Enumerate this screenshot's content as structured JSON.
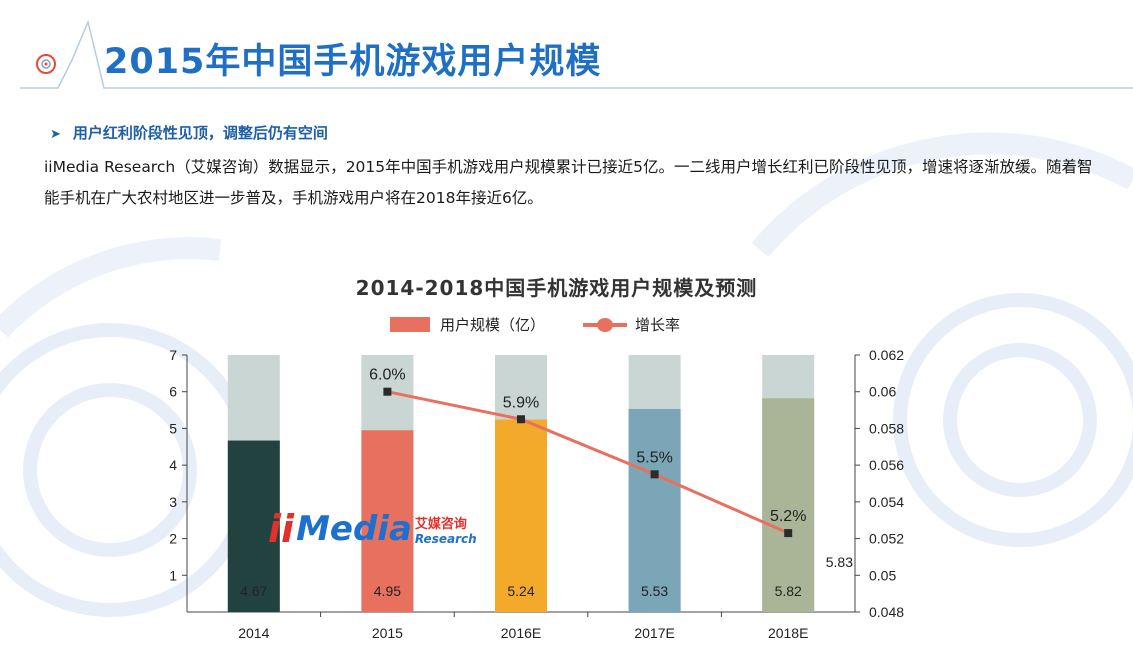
{
  "header": {
    "title": "2015年中国手机游戏用户规模"
  },
  "content": {
    "subheading": "用户红利阶段性见顶，调整后仍有空间",
    "paragraph": "iiMedia Research（艾媒咨询）数据显示，2015年中国手机游戏用户规模累计已接近5亿。一二线用户增长红利已阶段性见顶，增速将逐渐放缓。随着智能手机在广大农村地区进一步普及，手机游戏用户将在2018年接近6亿。"
  },
  "logo": {
    "ii": "ii",
    "media": "Media",
    "cn": "艾媒咨询",
    "en": "Research"
  },
  "colors": {
    "title": "#1f6fc5",
    "line": "#e8705e",
    "bar_background": "#c9d6d3"
  },
  "chart_data": {
    "type": "bar",
    "title": "2014-2018中国手机游戏用户规模及预测",
    "legend": [
      "用户规模（亿）",
      "增长率"
    ],
    "legend_position": "top",
    "categories": [
      "2014",
      "2015",
      "2016E",
      "2017E",
      "2018E"
    ],
    "series": [
      {
        "name": "用户规模（亿）",
        "type": "bar",
        "axis": "left",
        "values": [
          4.67,
          4.95,
          5.24,
          5.53,
          5.82
        ],
        "labels": [
          "4.67",
          "4.95",
          "5.24",
          "5.53",
          "5.82"
        ],
        "colors": [
          "#22423f",
          "#e8705e",
          "#f3aa2a",
          "#7aa6b8",
          "#a9b596"
        ]
      },
      {
        "name": "增长率",
        "type": "line",
        "axis": "right",
        "x": [
          "2015",
          "2016E",
          "2017E",
          "2018E"
        ],
        "values": [
          0.06,
          0.0585,
          0.0555,
          0.0523
        ],
        "labels": [
          "6.0%",
          "5.9%",
          "5.5%",
          "5.2%"
        ]
      }
    ],
    "background_bar_max": 7,
    "stray_label": "5.83",
    "y_left": {
      "min": 0,
      "max": 7,
      "ticks": [
        "1",
        "2",
        "3",
        "4",
        "5",
        "6",
        "7"
      ]
    },
    "y_right": {
      "min": 0.048,
      "max": 0.062,
      "ticks": [
        "0.048",
        "0.05",
        "0.052",
        "0.054",
        "0.056",
        "0.058",
        "0.06",
        "0.062"
      ]
    },
    "grid": false
  }
}
